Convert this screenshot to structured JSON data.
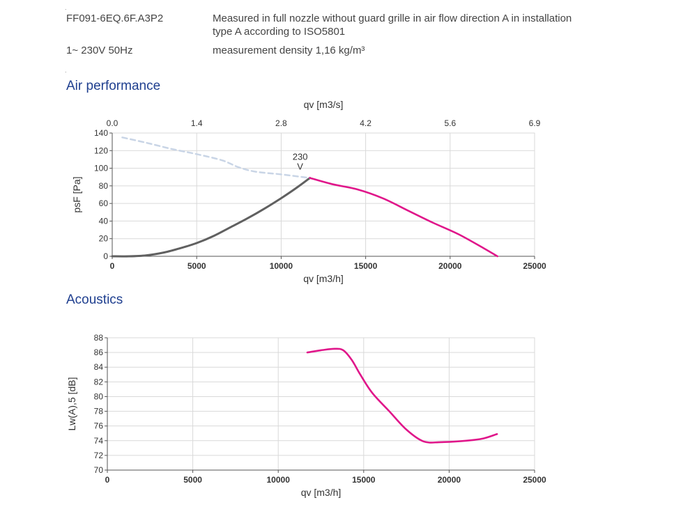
{
  "header": {
    "model": "FF091-6EQ.6F.A3P2",
    "measurement_line1": "Measured in full nozzle without guard grille in air flow direction A in installation",
    "measurement_line2": "type A according to ISO5801",
    "power": "1~ 230V 50Hz",
    "density": "measurement density 1,16 kg/m³",
    "dot": "."
  },
  "sections": {
    "air_title": "Air performance",
    "acoustics_title": "Acoustics"
  },
  "colors": {
    "accent": "#e0168a",
    "gray_curve": "#606060",
    "dashed_curve": "#c9d5e6",
    "grid": "#d9d9d9",
    "title": "#1f3f8f"
  },
  "chart_data": [
    {
      "type": "line",
      "xlabel": "qv [m3/h]",
      "ylabel": "psF [Pa]",
      "x2label": "qv [m3/s]",
      "xlim": [
        0,
        25000
      ],
      "ylim": [
        0,
        140
      ],
      "xticks": [
        "0",
        "5000",
        "10000",
        "15000",
        "20000",
        "25000"
      ],
      "yticks": [
        "0",
        "20",
        "40",
        "60",
        "80",
        "100",
        "120",
        "140"
      ],
      "x2ticks": [
        "0.0",
        "1.4",
        "2.8",
        "4.2",
        "5.6",
        "6.9"
      ],
      "grid": true,
      "annotation": "230 V",
      "series": [
        {
          "x": [
            0,
            1000,
            2000,
            3000,
            4000,
            5000,
            6000,
            7000,
            8000,
            9000,
            10000,
            11000,
            11700
          ],
          "y": [
            0,
            0,
            1,
            4,
            9,
            15,
            23,
            33,
            43,
            54,
            66,
            79,
            89
          ],
          "style": "solid-gray"
        },
        {
          "x": [
            600,
            2000,
            3500,
            5000,
            6500,
            7500,
            8500,
            10000,
            11700
          ],
          "y": [
            135,
            129,
            122,
            116,
            109,
            101,
            96,
            93,
            89
          ],
          "style": "dashed-light"
        },
        {
          "name": "230 V",
          "x": [
            11700,
            13000,
            14500,
            16000,
            17500,
            19000,
            20500,
            22000,
            22800
          ],
          "y": [
            89,
            82,
            76,
            66,
            52,
            38,
            25,
            9,
            0
          ],
          "style": "solid-accent"
        }
      ]
    },
    {
      "type": "line",
      "xlabel": "qv [m3/h]",
      "ylabel": "Lw(A),5 [dB]",
      "xlim": [
        0,
        25000
      ],
      "ylim": [
        70,
        88
      ],
      "xticks": [
        "0",
        "5000",
        "10000",
        "15000",
        "20000",
        "25000"
      ],
      "yticks": [
        "70",
        "72",
        "74",
        "76",
        "78",
        "80",
        "82",
        "84",
        "86",
        "88"
      ],
      "grid": true,
      "series": [
        {
          "x": [
            11700,
            12500,
            13300,
            13800,
            14300,
            14800,
            15500,
            16500,
            17500,
            18500,
            19500,
            21000,
            22000,
            22800
          ],
          "y": [
            86.0,
            86.3,
            86.5,
            86.3,
            85.0,
            83.0,
            80.5,
            78.0,
            75.5,
            73.9,
            73.8,
            74.0,
            74.3,
            74.9
          ],
          "style": "solid-accent"
        }
      ]
    }
  ]
}
